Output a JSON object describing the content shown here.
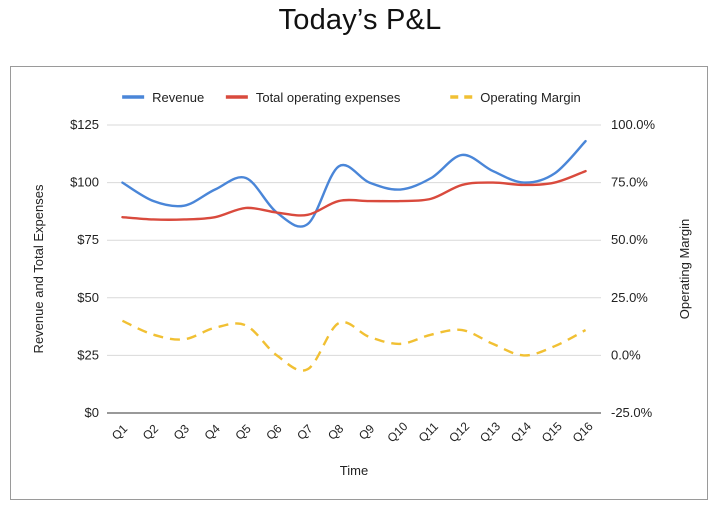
{
  "page": {
    "title": "Today’s P&L"
  },
  "chart_data": {
    "type": "line",
    "categories": [
      "Q1",
      "Q2",
      "Q3",
      "Q4",
      "Q5",
      "Q6",
      "Q7",
      "Q8",
      "Q9",
      "Q10",
      "Q11",
      "Q12",
      "Q13",
      "Q14",
      "Q15",
      "Q16"
    ],
    "series": [
      {
        "name": "Revenue",
        "axis": "left",
        "style": "solid",
        "color": "#4a86d8",
        "values": [
          100,
          92,
          90,
          97,
          102,
          87,
          82,
          107,
          100,
          97,
          102,
          112,
          105,
          100,
          104,
          118
        ]
      },
      {
        "name": "Total operating expenses",
        "axis": "left",
        "style": "solid",
        "color": "#d94a3d",
        "values": [
          85,
          84,
          84,
          85,
          89,
          87,
          86,
          92,
          92,
          92,
          93,
          99,
          100,
          99,
          100,
          105
        ]
      },
      {
        "name": "Operating Margin",
        "axis": "right",
        "style": "dashed",
        "color": "#f1c033",
        "values": [
          15,
          9,
          7,
          12,
          13,
          0,
          -6,
          14,
          8,
          5,
          9,
          11,
          5,
          0,
          4,
          11
        ]
      }
    ],
    "xlabel": "Time",
    "ylabel": "Revenue and Total Expenses",
    "y2label": "Operating Margin",
    "ylim": [
      0,
      125
    ],
    "y2lim": [
      -25,
      100
    ],
    "yticks": [
      "$0",
      "$25",
      "$50",
      "$75",
      "$100",
      "$125"
    ],
    "y2ticks": [
      "-25.0%",
      "0.0%",
      "25.0%",
      "50.0%",
      "75.0%",
      "100.0%"
    ],
    "grid": true,
    "legend_position": "top"
  }
}
